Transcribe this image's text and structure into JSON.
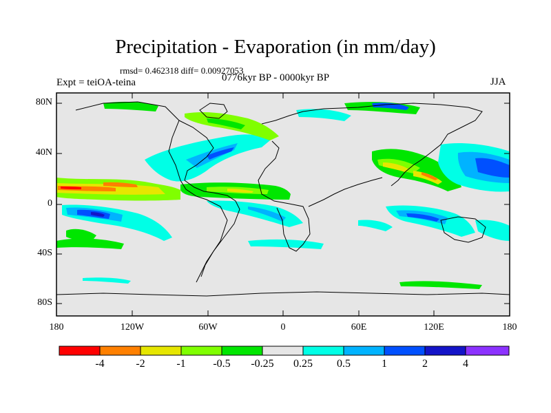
{
  "header": {
    "title": "Precipitation - Evaporation (in mm/day)",
    "stats": "rmsd= 0.462318 diff= 0.00927053",
    "expt": "Expt = teiOA-teina",
    "period": "0776kyr BP - 0000kyr BP",
    "season": "JJA"
  },
  "axes": {
    "lat_labels": [
      "80N",
      "40N",
      "0",
      "40S",
      "80S"
    ],
    "lon_labels": [
      "180",
      "120W",
      "60W",
      "0",
      "60E",
      "120E",
      "180"
    ]
  },
  "colorbar": {
    "labels": [
      "-4",
      "-2",
      "-1",
      "-0.5",
      "-0.25",
      "0.25",
      "0.5",
      "1",
      "2",
      "4"
    ],
    "colors": [
      "#ff0000",
      "#ff8000",
      "#e6e600",
      "#80ff00",
      "#00e600",
      "#e6e6e6",
      "#00ffe6",
      "#00b3ff",
      "#0050ff",
      "#1414c8",
      "#8c32ff"
    ]
  },
  "map": {
    "ocean_color": "#e6e6e6",
    "lat_range": [
      -90,
      90
    ],
    "lon_range": [
      -180,
      180
    ]
  }
}
